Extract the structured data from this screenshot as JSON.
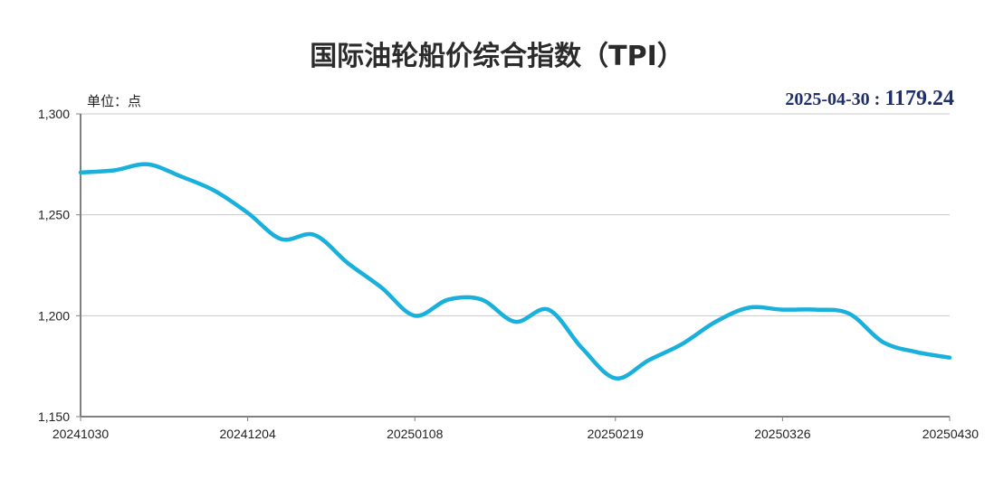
{
  "chart_data": {
    "type": "line",
    "title": "国际油轮船价综合指数（TPI）",
    "unit_label": "单位：点",
    "latest": {
      "date": "2025-04-30",
      "separator": " : ",
      "value": "1179.24"
    },
    "y_range": [
      1150,
      1300
    ],
    "y_ticks": [
      {
        "value": 1300,
        "label": "1,300"
      },
      {
        "value": 1250,
        "label": "1,250"
      },
      {
        "value": 1200,
        "label": "1,200"
      },
      {
        "value": 1150,
        "label": "1,150"
      }
    ],
    "x_range": [
      "2024-10-30",
      "2025-04-30"
    ],
    "x_ticks": [
      {
        "date": "2024-10-30",
        "label": "20241030"
      },
      {
        "date": "2024-12-04",
        "label": "20241204"
      },
      {
        "date": "2025-01-08",
        "label": "20250108"
      },
      {
        "date": "2025-02-19",
        "label": "20250219"
      },
      {
        "date": "2025-03-26",
        "label": "20250326"
      },
      {
        "date": "2025-04-30",
        "label": "20250430"
      }
    ],
    "grid": true,
    "series": [
      {
        "color": "#19b0dc",
        "points": [
          {
            "x": "2024-10-30",
            "y": 1271
          },
          {
            "x": "2024-11-06",
            "y": 1272
          },
          {
            "x": "2024-11-13",
            "y": 1275
          },
          {
            "x": "2024-11-20",
            "y": 1269
          },
          {
            "x": "2024-11-27",
            "y": 1262
          },
          {
            "x": "2024-12-04",
            "y": 1251
          },
          {
            "x": "2024-12-11",
            "y": 1238
          },
          {
            "x": "2024-12-18",
            "y": 1240
          },
          {
            "x": "2024-12-25",
            "y": 1226
          },
          {
            "x": "2025-01-01",
            "y": 1214
          },
          {
            "x": "2025-01-08",
            "y": 1200
          },
          {
            "x": "2025-01-15",
            "y": 1208
          },
          {
            "x": "2025-01-22",
            "y": 1208
          },
          {
            "x": "2025-01-29",
            "y": 1197
          },
          {
            "x": "2025-02-05",
            "y": 1203
          },
          {
            "x": "2025-02-12",
            "y": 1184
          },
          {
            "x": "2025-02-19",
            "y": 1169
          },
          {
            "x": "2025-02-26",
            "y": 1178
          },
          {
            "x": "2025-03-05",
            "y": 1186
          },
          {
            "x": "2025-03-12",
            "y": 1197
          },
          {
            "x": "2025-03-19",
            "y": 1204
          },
          {
            "x": "2025-03-26",
            "y": 1203
          },
          {
            "x": "2025-04-02",
            "y": 1203
          },
          {
            "x": "2025-04-09",
            "y": 1201
          },
          {
            "x": "2025-04-16",
            "y": 1187
          },
          {
            "x": "2025-04-23",
            "y": 1182
          },
          {
            "x": "2025-04-30",
            "y": 1179.24
          }
        ]
      }
    ],
    "colors": {
      "line": "#19b0dc",
      "latest_text": "#1f2f6b",
      "grid": "#c8c8c8",
      "axis": "#808080"
    }
  }
}
